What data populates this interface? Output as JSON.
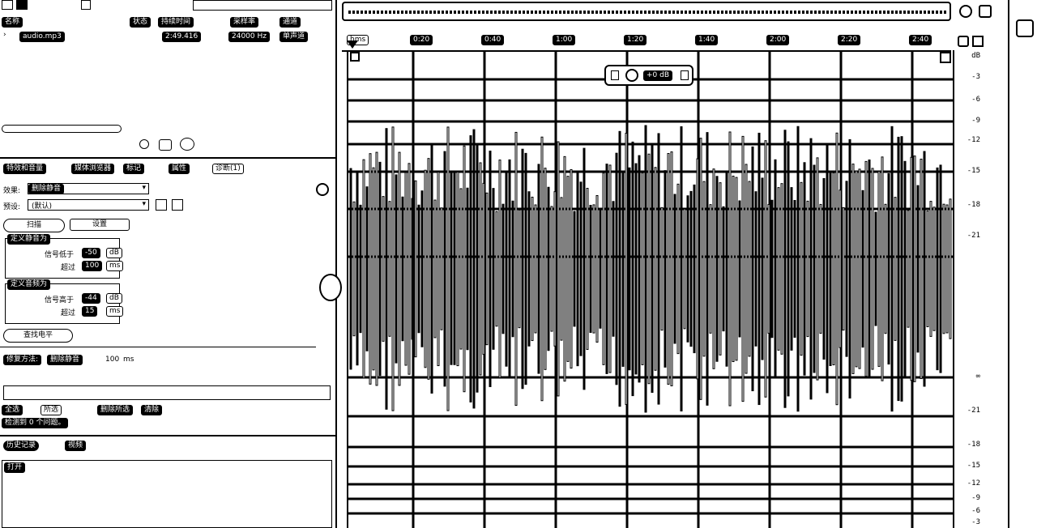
{
  "files": {
    "toolbar_icons": [
      "file-icon",
      "folder-icon",
      "copy-icon",
      "search-icon"
    ],
    "columns": [
      "名称",
      "状态",
      "持续时间",
      "采样率",
      "通道"
    ],
    "row": {
      "name": "audio.mp3",
      "duration": "2:49.416",
      "sample_rate": "24000 Hz",
      "channels": "单声道"
    }
  },
  "effects": {
    "tabs": [
      "特效和音量",
      "媒体浏览器",
      "标记",
      "属性",
      "诊断(1)"
    ],
    "effect_label": "效果:",
    "effect_value": "删除静音",
    "preset_label": "预设:",
    "preset_value": "(默认)",
    "scan_button": "扫描",
    "settings_button": "设置",
    "group1_title": "定义静音为",
    "group1_signal_label": "信号低于",
    "group1_signal_value": "-50",
    "group1_unit": "dB",
    "group1_more_label": "超过",
    "group1_more_value": "100",
    "group1_more_unit": "ms",
    "group2_title": "定义音频为",
    "group2_signal_label": "信号高于",
    "group2_signal_value": "-44",
    "group2_unit": "dB",
    "group2_more_label": "超过",
    "group2_more_value": "15",
    "group2_more_unit": "ms",
    "find_level_button": "查找电平",
    "fix_method_label": "修复方法:",
    "fix_method_value": "删除静音",
    "fix_method_unit": "ms",
    "fix_method_number": "100",
    "footer_btn1": "全选",
    "footer_btn2": "所选",
    "footer_btn3": "删除所选",
    "footer_btn4": "清除",
    "status_text": "检测到 0 个问题。"
  },
  "history": {
    "tabs": [
      "历史记录",
      "视频"
    ],
    "open_item": "打开"
  },
  "editor": {
    "ruler_start": "hms",
    "ruler_labels": [
      "0:20",
      "0:40",
      "1:00",
      "1:20",
      "1:40",
      "2:00",
      "2:20",
      "2:40"
    ],
    "db_scale": [
      "dB",
      "-3",
      "-6",
      "-9",
      "-12",
      "-15",
      "-18",
      "-21",
      "∞",
      "-21",
      "-18",
      "-15",
      "-12",
      "-9",
      "-6",
      "-3"
    ],
    "hud_value": "+0 dB"
  }
}
